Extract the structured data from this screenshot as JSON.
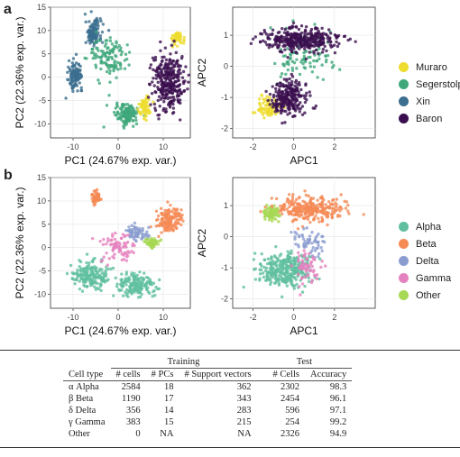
{
  "panels": {
    "a": "a",
    "b": "b"
  },
  "axes": {
    "pc1": "PC1 (24.67% exp. var.)",
    "pc2": "PC2 (22.36% exp. var.)",
    "apc1": "APC1",
    "apc2": "APC2"
  },
  "chart_data": [
    {
      "panel": "a",
      "type": "scatter",
      "xlabel": "PC1 (24.67% exp. var.)",
      "ylabel": "PC2 (22.36% exp. var.)",
      "xlim": [
        -15,
        16
      ],
      "ylim": [
        -13,
        15
      ],
      "xticks": [
        -10,
        0,
        10
      ],
      "yticks": [
        -10,
        -5,
        0,
        5,
        10,
        15
      ],
      "series": [
        {
          "name": "Xin",
          "color": "#3b6e8f",
          "clusters": [
            {
              "cx": -5.5,
              "cy": 9.5,
              "sx": 1.6,
              "sy": 2.5,
              "n": 130
            },
            {
              "cx": -9.5,
              "cy": 0.5,
              "sx": 1.4,
              "sy": 2.6,
              "n": 110
            }
          ]
        },
        {
          "name": "Segerstolpe",
          "color": "#3fa87a",
          "clusters": [
            {
              "cx": 2,
              "cy": -8,
              "sx": 2.2,
              "sy": 2.0,
              "n": 140
            },
            {
              "cx": -2,
              "cy": 4,
              "sx": 4.0,
              "sy": 4.5,
              "n": 120
            }
          ]
        },
        {
          "name": "Muraro",
          "color": "#eedc2f",
          "clusters": [
            {
              "cx": 13,
              "cy": 8.5,
              "sx": 1.3,
              "sy": 1.4,
              "n": 60
            },
            {
              "cx": 6,
              "cy": -6.5,
              "sx": 1.2,
              "sy": 2.2,
              "n": 60
            }
          ]
        },
        {
          "name": "Baron",
          "color": "#3b0f4f",
          "clusters": [
            {
              "cx": 11,
              "cy": -1,
              "sx": 3.2,
              "sy": 5.5,
              "n": 300
            }
          ]
        }
      ]
    },
    {
      "panel": "a",
      "type": "scatter",
      "xlabel": "APC1",
      "ylabel": "APC2",
      "xlim": [
        -3,
        4
      ],
      "ylim": [
        -2.3,
        1.9
      ],
      "xticks": [
        -2,
        0,
        2
      ],
      "yticks": [
        -2,
        -1,
        0,
        1
      ],
      "series": [
        {
          "name": "Segerstolpe",
          "color": "#3fa87a",
          "clusters": [
            {
              "cx": 0.5,
              "cy": 0.3,
              "sx": 1.5,
              "sy": 0.7,
              "n": 100
            }
          ]
        },
        {
          "name": "Muraro",
          "color": "#eedc2f",
          "clusters": [
            {
              "cx": -1.2,
              "cy": -1.3,
              "sx": 0.5,
              "sy": 0.3,
              "n": 80
            }
          ]
        },
        {
          "name": "Baron",
          "color": "#3b0f4f",
          "clusters": [
            {
              "cx": 0.3,
              "cy": 0.85,
              "sx": 1.7,
              "sy": 0.35,
              "n": 350
            },
            {
              "cx": -0.2,
              "cy": -1.0,
              "sx": 0.8,
              "sy": 0.5,
              "n": 250
            }
          ]
        }
      ]
    },
    {
      "panel": "b",
      "type": "scatter",
      "xlabel": "PC1 (24.67% exp. var.)",
      "ylabel": "PC2 (22.36% exp. var.)",
      "xlim": [
        -15,
        16
      ],
      "ylim": [
        -13,
        15
      ],
      "xticks": [
        -10,
        0,
        10
      ],
      "yticks": [
        -10,
        -5,
        0,
        5,
        10,
        15
      ],
      "series": [
        {
          "name": "Alpha",
          "color": "#5fbf9f",
          "clusters": [
            {
              "cx": -6,
              "cy": -6,
              "sx": 3.5,
              "sy": 2.5,
              "n": 180
            },
            {
              "cx": 4,
              "cy": -8,
              "sx": 4,
              "sy": 2.2,
              "n": 160
            }
          ]
        },
        {
          "name": "Beta",
          "color": "#f58a55",
          "clusters": [
            {
              "cx": -5,
              "cy": 10.5,
              "sx": 1.0,
              "sy": 1.2,
              "n": 50
            },
            {
              "cx": 11,
              "cy": 6,
              "sx": 2.5,
              "sy": 2.5,
              "n": 140
            }
          ]
        },
        {
          "name": "Delta",
          "color": "#8b9dd0",
          "clusters": [
            {
              "cx": 4,
              "cy": 3,
              "sx": 2.2,
              "sy": 1.6,
              "n": 70
            }
          ]
        },
        {
          "name": "Gamma",
          "color": "#e581be",
          "clusters": [
            {
              "cx": 0,
              "cy": 0,
              "sx": 3.5,
              "sy": 3,
              "n": 80
            }
          ]
        },
        {
          "name": "Other",
          "color": "#a6d854",
          "clusters": [
            {
              "cx": 7.5,
              "cy": 1,
              "sx": 1.2,
              "sy": 1.0,
              "n": 60
            }
          ]
        }
      ]
    },
    {
      "panel": "b",
      "type": "scatter",
      "xlabel": "APC1",
      "ylabel": "APC2",
      "xlim": [
        -3,
        4
      ],
      "ylim": [
        -2.3,
        1.9
      ],
      "xticks": [
        -2,
        0,
        2
      ],
      "yticks": [
        -2,
        -1,
        0,
        1
      ],
      "series": [
        {
          "name": "Alpha",
          "color": "#5fbf9f",
          "clusters": [
            {
              "cx": -0.5,
              "cy": -1.1,
              "sx": 1.2,
              "sy": 0.5,
              "n": 300
            }
          ]
        },
        {
          "name": "Beta",
          "color": "#f58a55",
          "clusters": [
            {
              "cx": 0.8,
              "cy": 0.9,
              "sx": 1.4,
              "sy": 0.35,
              "n": 280
            }
          ]
        },
        {
          "name": "Delta",
          "color": "#8b9dd0",
          "clusters": [
            {
              "cx": 0.8,
              "cy": -0.2,
              "sx": 0.7,
              "sy": 0.4,
              "n": 60
            }
          ]
        },
        {
          "name": "Gamma",
          "color": "#e581be",
          "clusters": [
            {
              "cx": 0.6,
              "cy": -0.9,
              "sx": 0.6,
              "sy": 0.5,
              "n": 60
            }
          ]
        },
        {
          "name": "Other",
          "color": "#a6d854",
          "clusters": [
            {
              "cx": -1.1,
              "cy": 0.75,
              "sx": 0.4,
              "sy": 0.2,
              "n": 80
            }
          ]
        }
      ]
    }
  ],
  "legend_a": [
    {
      "label": "Muraro",
      "color": "#eedc2f"
    },
    {
      "label": "Segerstolpe",
      "color": "#3fa87a"
    },
    {
      "label": "Xin",
      "color": "#3b6e8f"
    },
    {
      "label": "Baron",
      "color": "#3b0f4f"
    }
  ],
  "legend_b": [
    {
      "label": "Alpha",
      "color": "#5fbf9f"
    },
    {
      "label": "Beta",
      "color": "#f58a55"
    },
    {
      "label": "Delta",
      "color": "#8b9dd0"
    },
    {
      "label": "Gamma",
      "color": "#e581be"
    },
    {
      "label": "Other",
      "color": "#a6d854"
    }
  ],
  "table": {
    "group_training": "Training",
    "group_test": "Test",
    "headers": [
      "Cell type",
      "# cells",
      "# PCs",
      "# Support vectors",
      "# Cells",
      "Accuracy"
    ],
    "rows": [
      [
        "α Alpha",
        "2584",
        "18",
        "362",
        "2302",
        "98.3"
      ],
      [
        "β Beta",
        "1190",
        "17",
        "343",
        "2454",
        "96.1"
      ],
      [
        "δ Delta",
        "356",
        "14",
        "283",
        "596",
        "97.1"
      ],
      [
        "γ Gamma",
        "383",
        "15",
        "215",
        "254",
        "99.2"
      ],
      [
        "Other",
        "0",
        "NA",
        "NA",
        "2326",
        "94.9"
      ]
    ]
  }
}
